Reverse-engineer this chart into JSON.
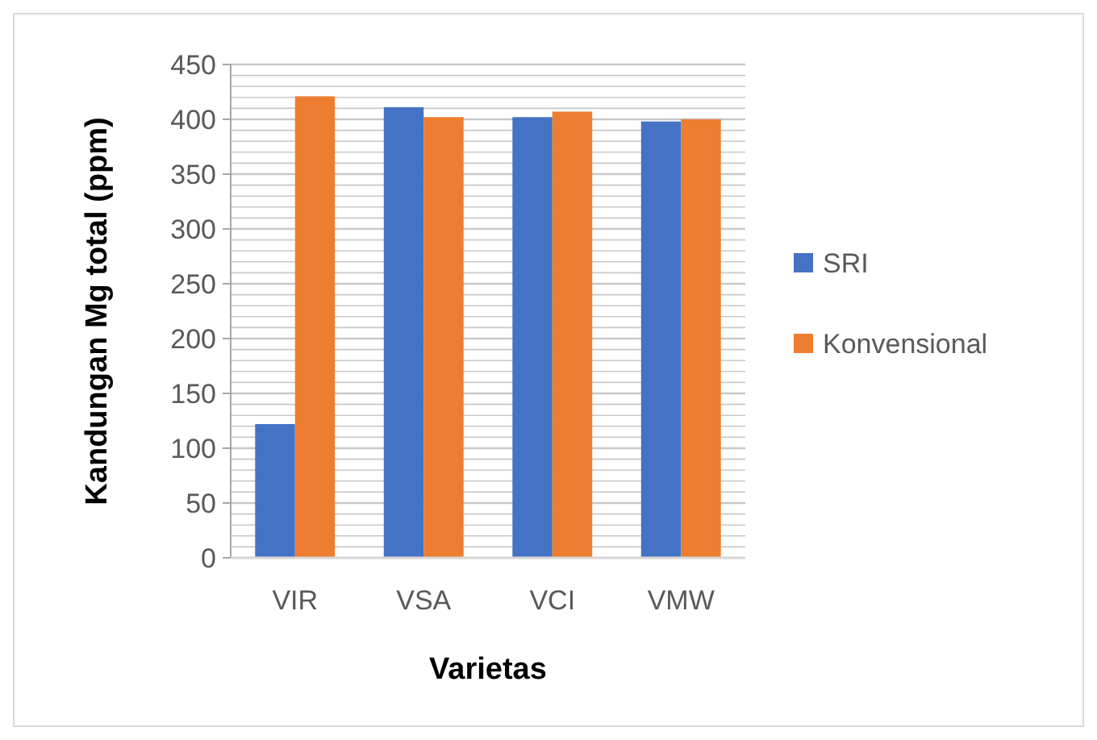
{
  "chart_data": {
    "type": "bar",
    "xlabel": "Varietas",
    "ylabel": "Kandungan Mg total (ppm)",
    "categories": [
      "VIR",
      "VSA",
      "VCI",
      "VMW"
    ],
    "series": [
      {
        "name": "SRI",
        "color": "#4472c4",
        "values": [
          122,
          411,
          402,
          398
        ]
      },
      {
        "name": "Konvensional",
        "color": "#ed7d31",
        "values": [
          421,
          402,
          407,
          400
        ]
      }
    ],
    "ylim": [
      0,
      450
    ],
    "yticks": [
      0,
      {
        "value": 10,
        "label": null
      },
      {
        "value": 20,
        "label": null
      },
      {
        "value": 30,
        "label": null
      },
      {
        "value": 40,
        "label": null
      },
      50,
      {
        "value": 60,
        "label": null
      },
      {
        "value": 70,
        "label": null
      },
      {
        "value": 80,
        "label": null
      },
      {
        "value": 90,
        "label": null
      },
      100,
      {
        "value": 110,
        "label": null
      },
      {
        "value": 120,
        "label": null
      },
      {
        "value": 130,
        "label": null
      },
      {
        "value": 140,
        "label": null
      },
      150,
      {
        "value": 160,
        "label": null
      },
      {
        "value": 170,
        "label": null
      },
      {
        "value": 180,
        "label": null
      },
      {
        "value": 190,
        "label": null
      },
      200,
      {
        "value": 210,
        "label": null
      },
      {
        "value": 220,
        "label": null
      },
      {
        "value": 230,
        "label": null
      },
      {
        "value": 240,
        "label": null
      },
      250,
      {
        "value": 260,
        "label": null
      },
      {
        "value": 270,
        "label": null
      },
      {
        "value": 280,
        "label": null
      },
      {
        "value": 290,
        "label": null
      },
      300,
      {
        "value": 310,
        "label": null
      },
      {
        "value": 320,
        "label": null
      },
      {
        "value": 330,
        "label": null
      },
      {
        "value": 340,
        "label": null
      },
      350,
      {
        "value": 360,
        "label": null
      },
      {
        "value": 370,
        "label": null
      },
      {
        "value": 380,
        "label": null
      },
      {
        "value": 390,
        "label": null
      },
      400,
      {
        "value": 410,
        "label": null
      },
      {
        "value": 420,
        "label": null
      },
      {
        "value": 430,
        "label": null
      },
      {
        "value": 440,
        "label": null
      },
      450
    ],
    "grid": "y",
    "legend": "right"
  }
}
